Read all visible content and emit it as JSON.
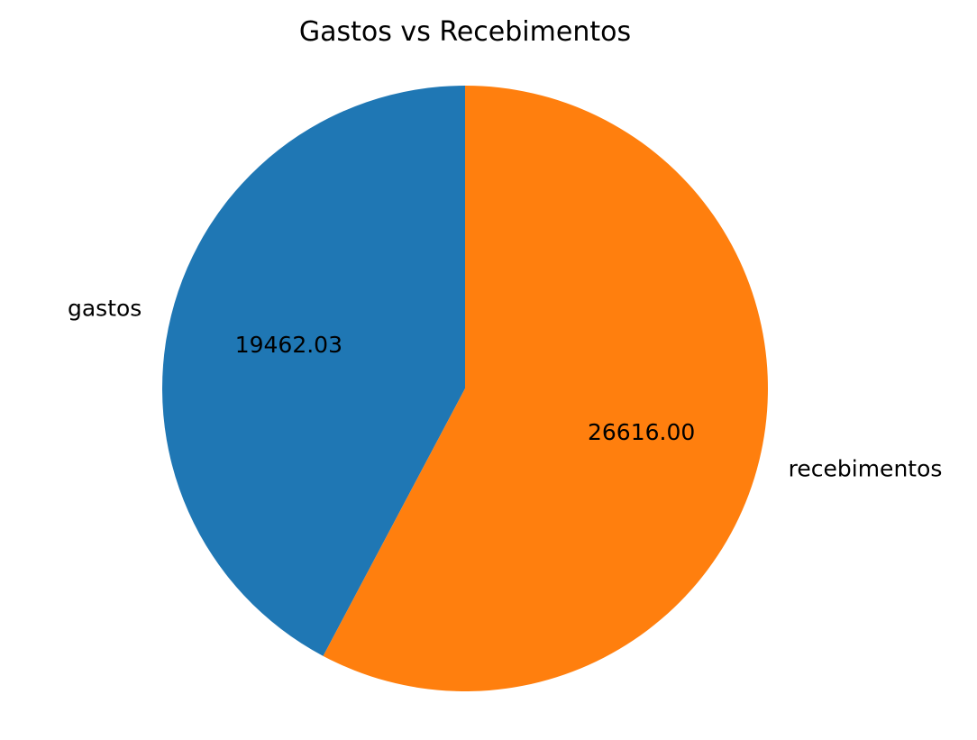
{
  "chart_data": {
    "type": "pie",
    "title": "Gastos vs Recebimentos",
    "slices": [
      {
        "label": "gastos",
        "value": 19462.03,
        "value_label": "19462.03",
        "color": "#1f77b4"
      },
      {
        "label": "recebimentos",
        "value": 26616.0,
        "value_label": "26616.00",
        "color": "#ff7f0e"
      }
    ],
    "start_angle_deg": 90,
    "direction": "counterclockwise",
    "legend": "none"
  }
}
